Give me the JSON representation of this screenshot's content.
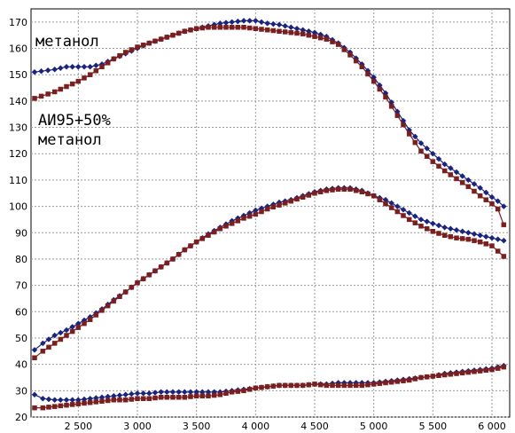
{
  "chart_data": {
    "type": "line",
    "xlim": [
      2100,
      6150
    ],
    "ylim": [
      20,
      175
    ],
    "xticks": [
      2500,
      3000,
      3500,
      4000,
      4500,
      5000,
      5500,
      6000
    ],
    "xtick_labels": [
      "2 500",
      "3 000",
      "3 500",
      "4 000",
      "4 500",
      "5 000",
      "5 500",
      "6 000"
    ],
    "yticks": [
      20,
      30,
      40,
      50,
      60,
      70,
      80,
      90,
      100,
      110,
      120,
      130,
      140,
      150,
      160,
      170
    ],
    "ytick_labels": [
      "20",
      "30",
      "40",
      "50",
      "60",
      "70",
      "80",
      "90",
      "100",
      "110",
      "120",
      "130",
      "140",
      "150",
      "160",
      "170"
    ],
    "grid": true,
    "annotations": [
      {
        "text": "метанол",
        "near": "upper-left"
      },
      {
        "text": "АИ95+50%",
        "near": "left"
      },
      {
        "text": "метанол",
        "near": "left"
      }
    ],
    "colors": {
      "blue": "#1a237e",
      "red": "#7a1f1f"
    },
    "series": [
      {
        "color": "blue",
        "x": [
          2130,
          2300,
          2400,
          2500,
          2600,
          2700,
          2800,
          2900,
          3000,
          3100,
          3200,
          3300,
          3400,
          3500,
          3600,
          3700,
          3800,
          3900,
          4000,
          4100,
          4200,
          4300,
          4400,
          4500,
          4600,
          4700,
          4800,
          4900,
          5000,
          5100,
          5200,
          5300,
          5400,
          5500,
          5600,
          5700,
          5800,
          5900,
          6000,
          6050,
          6100
        ],
        "y": [
          151,
          152,
          153,
          153,
          153,
          154,
          156,
          158,
          160,
          162,
          163.5,
          165,
          166.5,
          167.5,
          168.5,
          169.5,
          170,
          170.5,
          170.5,
          169.5,
          169,
          168,
          167,
          166,
          164.5,
          162,
          158.5,
          154,
          149,
          143,
          136,
          129,
          124,
          120,
          116,
          113,
          110,
          107,
          103.5,
          102,
          100
        ]
      },
      {
        "color": "red",
        "x": [
          2130,
          2300,
          2400,
          2500,
          2600,
          2700,
          2800,
          2900,
          3000,
          3100,
          3200,
          3300,
          3400,
          3500,
          3600,
          3700,
          3800,
          3900,
          4000,
          4100,
          4200,
          4300,
          4400,
          4500,
          4600,
          4700,
          4800,
          4900,
          5000,
          5100,
          5200,
          5300,
          5400,
          5500,
          5600,
          5700,
          5800,
          5900,
          6000,
          6050,
          6100
        ],
        "y": [
          141,
          143.5,
          145.5,
          147.5,
          150,
          153,
          156,
          158.5,
          160.5,
          162,
          163.5,
          165,
          166.5,
          167.5,
          168,
          168,
          168,
          168,
          167.5,
          167,
          166.5,
          166,
          165.5,
          164.5,
          163.5,
          161.5,
          157.5,
          153,
          147.5,
          141.5,
          134.5,
          127.5,
          121,
          117,
          113.5,
          110.5,
          107.5,
          104,
          101,
          99,
          93
        ]
      },
      {
        "color": "blue",
        "x": [
          2130,
          2200,
          2300,
          2400,
          2500,
          2600,
          2700,
          2800,
          2900,
          3000,
          3100,
          3200,
          3300,
          3400,
          3500,
          3600,
          3700,
          3800,
          3900,
          4000,
          4100,
          4200,
          4300,
          4400,
          4500,
          4600,
          4700,
          4800,
          4900,
          5000,
          5100,
          5200,
          5300,
          5400,
          5500,
          5600,
          5700,
          5800,
          5900,
          6000,
          6050,
          6100
        ],
        "y": [
          45.5,
          48,
          51,
          53,
          55.5,
          58,
          61,
          64.5,
          67.5,
          71,
          74,
          77,
          80,
          83.5,
          86.5,
          89.5,
          92,
          94.5,
          96.5,
          98.5,
          100,
          101.5,
          102.5,
          104,
          105.5,
          106.5,
          107,
          107,
          106,
          104,
          102.5,
          100,
          97.5,
          95,
          93.5,
          92,
          91,
          90,
          89,
          88,
          87.5,
          87
        ]
      },
      {
        "color": "red",
        "x": [
          2130,
          2200,
          2300,
          2400,
          2500,
          2600,
          2700,
          2800,
          2900,
          3000,
          3100,
          3200,
          3300,
          3400,
          3500,
          3600,
          3700,
          3800,
          3900,
          4000,
          4100,
          4200,
          4300,
          4400,
          4500,
          4600,
          4700,
          4800,
          4900,
          5000,
          5100,
          5200,
          5300,
          5400,
          5500,
          5600,
          5700,
          5800,
          5900,
          6000,
          6050,
          6100
        ],
        "y": [
          42.5,
          45,
          48,
          51,
          54,
          57,
          60.5,
          64,
          67.5,
          71,
          74,
          77,
          80,
          83.5,
          86.5,
          89,
          91.5,
          93.5,
          95.5,
          97,
          99,
          100.5,
          102,
          103.5,
          105,
          106,
          106.5,
          106.5,
          105.5,
          104,
          101,
          98,
          95,
          92.5,
          90.5,
          89,
          88,
          87.5,
          86.5,
          85,
          83,
          81
        ]
      },
      {
        "color": "blue",
        "x": [
          2130,
          2200,
          2300,
          2400,
          2500,
          2600,
          2700,
          2800,
          2900,
          3000,
          3100,
          3200,
          3300,
          3400,
          3500,
          3600,
          3700,
          3800,
          3900,
          4000,
          4100,
          4200,
          4300,
          4400,
          4500,
          4600,
          4700,
          4800,
          4900,
          5000,
          5100,
          5200,
          5300,
          5400,
          5500,
          5600,
          5700,
          5800,
          5900,
          6000,
          6050,
          6100
        ],
        "y": [
          28.5,
          27,
          26.5,
          26.5,
          26.5,
          27,
          27.5,
          28,
          28.5,
          29,
          29,
          29.5,
          29.5,
          29.5,
          29.5,
          29.5,
          29.5,
          30,
          30.5,
          31,
          31.5,
          32,
          32,
          32,
          32.5,
          32.5,
          33,
          33,
          33,
          33,
          33.5,
          34,
          34.5,
          35,
          35.5,
          36.5,
          37,
          37.5,
          38,
          38.5,
          39,
          39.5
        ]
      },
      {
        "color": "red",
        "x": [
          2130,
          2200,
          2300,
          2400,
          2500,
          2600,
          2700,
          2800,
          2900,
          3000,
          3100,
          3200,
          3300,
          3400,
          3500,
          3600,
          3700,
          3800,
          3900,
          4000,
          4100,
          4200,
          4300,
          4400,
          4500,
          4600,
          4700,
          4800,
          4900,
          5000,
          5100,
          5200,
          5300,
          5400,
          5500,
          5600,
          5700,
          5800,
          5900,
          6000,
          6050,
          6100
        ],
        "y": [
          23.5,
          23.5,
          24,
          24.5,
          25,
          25.5,
          26,
          26.5,
          26.5,
          27,
          27,
          27.5,
          27.5,
          27.5,
          28,
          28,
          28.5,
          29.5,
          30,
          31,
          31.5,
          32,
          32,
          32,
          32.5,
          32,
          32,
          32,
          32,
          32.5,
          33,
          33.5,
          34,
          35,
          35.5,
          36,
          36.5,
          37,
          37.5,
          38,
          38.5,
          39
        ]
      }
    ]
  }
}
